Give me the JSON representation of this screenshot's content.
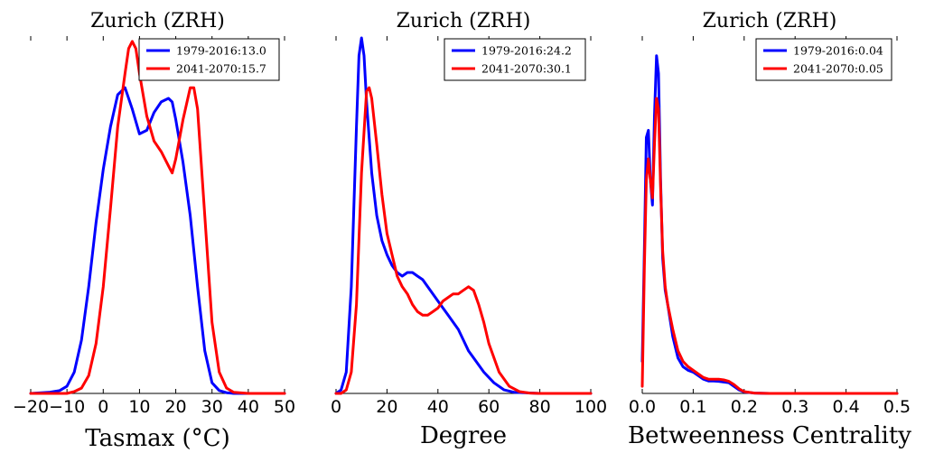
{
  "chart_data": [
    {
      "type": "line",
      "title": "Zurich (ZRH)",
      "xlabel": "Tasmax (°C)",
      "xlim": [
        -20,
        50
      ],
      "xticks": [
        -20,
        -10,
        0,
        10,
        20,
        30,
        40,
        50
      ],
      "xtick_labels": [
        "−20",
        "−10",
        "0",
        "10",
        "20",
        "30",
        "40",
        "50"
      ],
      "ylim": [
        0,
        1
      ],
      "yticks_shown": false,
      "legend_position": "top-right",
      "series": [
        {
          "name": "1979-2016:13.0",
          "color": "#0000ff",
          "x": [
            -20,
            -15,
            -12,
            -10,
            -8,
            -6,
            -4,
            -2,
            0,
            2,
            4,
            6,
            8,
            10,
            12,
            14,
            16,
            18,
            19,
            20,
            22,
            24,
            26,
            28,
            30,
            32,
            34,
            36,
            40,
            50
          ],
          "y": [
            0,
            0.003,
            0.008,
            0.02,
            0.06,
            0.15,
            0.3,
            0.48,
            0.63,
            0.75,
            0.84,
            0.86,
            0.8,
            0.73,
            0.74,
            0.79,
            0.82,
            0.83,
            0.82,
            0.77,
            0.65,
            0.5,
            0.3,
            0.12,
            0.03,
            0.008,
            0.002,
            0,
            0,
            0
          ]
        },
        {
          "name": "2041-2070:15.7",
          "color": "#ff0000",
          "x": [
            -20,
            -10,
            -8,
            -6,
            -4,
            -2,
            0,
            2,
            4,
            6,
            7,
            8,
            9,
            10,
            12,
            14,
            16,
            18,
            19,
            20,
            22,
            24,
            25,
            26,
            28,
            30,
            32,
            34,
            36,
            40,
            50
          ],
          "y": [
            0,
            0,
            0.005,
            0.015,
            0.05,
            0.14,
            0.3,
            0.52,
            0.75,
            0.9,
            0.97,
            0.99,
            0.97,
            0.9,
            0.78,
            0.71,
            0.68,
            0.64,
            0.62,
            0.66,
            0.77,
            0.86,
            0.86,
            0.8,
            0.5,
            0.2,
            0.06,
            0.015,
            0.003,
            0,
            0
          ]
        }
      ]
    },
    {
      "type": "line",
      "title": "Zurich (ZRH)",
      "xlabel": "Degree",
      "xlim": [
        0,
        100
      ],
      "xticks": [
        0,
        20,
        40,
        60,
        80,
        100
      ],
      "xtick_labels": [
        "0",
        "20",
        "40",
        "60",
        "80",
        "100"
      ],
      "ylim": [
        0,
        1
      ],
      "yticks_shown": false,
      "legend_position": "top-right",
      "series": [
        {
          "name": "1979-2016:24.2",
          "color": "#0000ff",
          "x": [
            0,
            2,
            4,
            6,
            8,
            9,
            10,
            11,
            12,
            14,
            16,
            18,
            20,
            22,
            24,
            26,
            28,
            30,
            32,
            34,
            36,
            38,
            40,
            44,
            48,
            50,
            52,
            54,
            58,
            62,
            66,
            70,
            80,
            100
          ],
          "y": [
            0,
            0.01,
            0.06,
            0.3,
            0.75,
            0.95,
            1.0,
            0.95,
            0.82,
            0.62,
            0.5,
            0.43,
            0.39,
            0.36,
            0.34,
            0.33,
            0.34,
            0.34,
            0.33,
            0.32,
            0.3,
            0.28,
            0.26,
            0.22,
            0.18,
            0.15,
            0.12,
            0.1,
            0.06,
            0.03,
            0.01,
            0.003,
            0,
            0
          ]
        },
        {
          "name": "2041-2070:30.1",
          "color": "#ff0000",
          "x": [
            0,
            2,
            4,
            6,
            8,
            10,
            12,
            13,
            14,
            16,
            18,
            20,
            22,
            24,
            26,
            28,
            30,
            32,
            34,
            36,
            38,
            40,
            42,
            44,
            46,
            48,
            50,
            52,
            54,
            56,
            58,
            60,
            64,
            68,
            72,
            76,
            80,
            100
          ],
          "y": [
            0,
            0,
            0.01,
            0.06,
            0.25,
            0.62,
            0.85,
            0.86,
            0.83,
            0.7,
            0.56,
            0.45,
            0.39,
            0.33,
            0.3,
            0.28,
            0.25,
            0.23,
            0.22,
            0.22,
            0.23,
            0.24,
            0.26,
            0.27,
            0.28,
            0.28,
            0.29,
            0.3,
            0.29,
            0.25,
            0.2,
            0.14,
            0.06,
            0.02,
            0.005,
            0.001,
            0,
            0
          ]
        }
      ]
    },
    {
      "type": "line",
      "title": "Zurich (ZRH)",
      "xlabel": "Betweenness Centrality",
      "xlim": [
        0.0,
        0.5
      ],
      "xticks": [
        0.0,
        0.1,
        0.2,
        0.3,
        0.4,
        0.5
      ],
      "xtick_labels": [
        "0.0",
        "0.1",
        "0.2",
        "0.3",
        "0.4",
        "0.5"
      ],
      "ylim": [
        0,
        1
      ],
      "yticks_shown": false,
      "legend_position": "top-right",
      "series": [
        {
          "name": "1979-2016:0.04",
          "color": "#0000ff",
          "x": [
            0,
            0.004,
            0.008,
            0.012,
            0.016,
            0.02,
            0.024,
            0.028,
            0.032,
            0.036,
            0.04,
            0.045,
            0.05,
            0.06,
            0.07,
            0.08,
            0.09,
            0.1,
            0.11,
            0.12,
            0.13,
            0.14,
            0.15,
            0.16,
            0.17,
            0.18,
            0.19,
            0.2,
            0.22,
            0.25,
            0.3,
            0.5
          ],
          "y": [
            0.09,
            0.4,
            0.72,
            0.74,
            0.6,
            0.53,
            0.78,
            0.95,
            0.9,
            0.6,
            0.38,
            0.29,
            0.25,
            0.16,
            0.1,
            0.075,
            0.065,
            0.06,
            0.05,
            0.04,
            0.035,
            0.035,
            0.034,
            0.032,
            0.03,
            0.02,
            0.01,
            0.004,
            0.001,
            0,
            0,
            0
          ]
        },
        {
          "name": "2041-2070:0.05",
          "color": "#ff0000",
          "x": [
            0,
            0.004,
            0.008,
            0.012,
            0.016,
            0.02,
            0.024,
            0.028,
            0.032,
            0.036,
            0.04,
            0.045,
            0.05,
            0.06,
            0.07,
            0.08,
            0.09,
            0.1,
            0.11,
            0.12,
            0.13,
            0.14,
            0.15,
            0.16,
            0.17,
            0.18,
            0.19,
            0.2,
            0.22,
            0.25,
            0.3,
            0.5
          ],
          "y": [
            0.02,
            0.35,
            0.6,
            0.66,
            0.6,
            0.55,
            0.7,
            0.83,
            0.8,
            0.58,
            0.4,
            0.3,
            0.25,
            0.18,
            0.12,
            0.09,
            0.075,
            0.065,
            0.055,
            0.045,
            0.04,
            0.04,
            0.04,
            0.038,
            0.034,
            0.025,
            0.013,
            0.005,
            0.001,
            0,
            0,
            0
          ]
        }
      ]
    }
  ]
}
